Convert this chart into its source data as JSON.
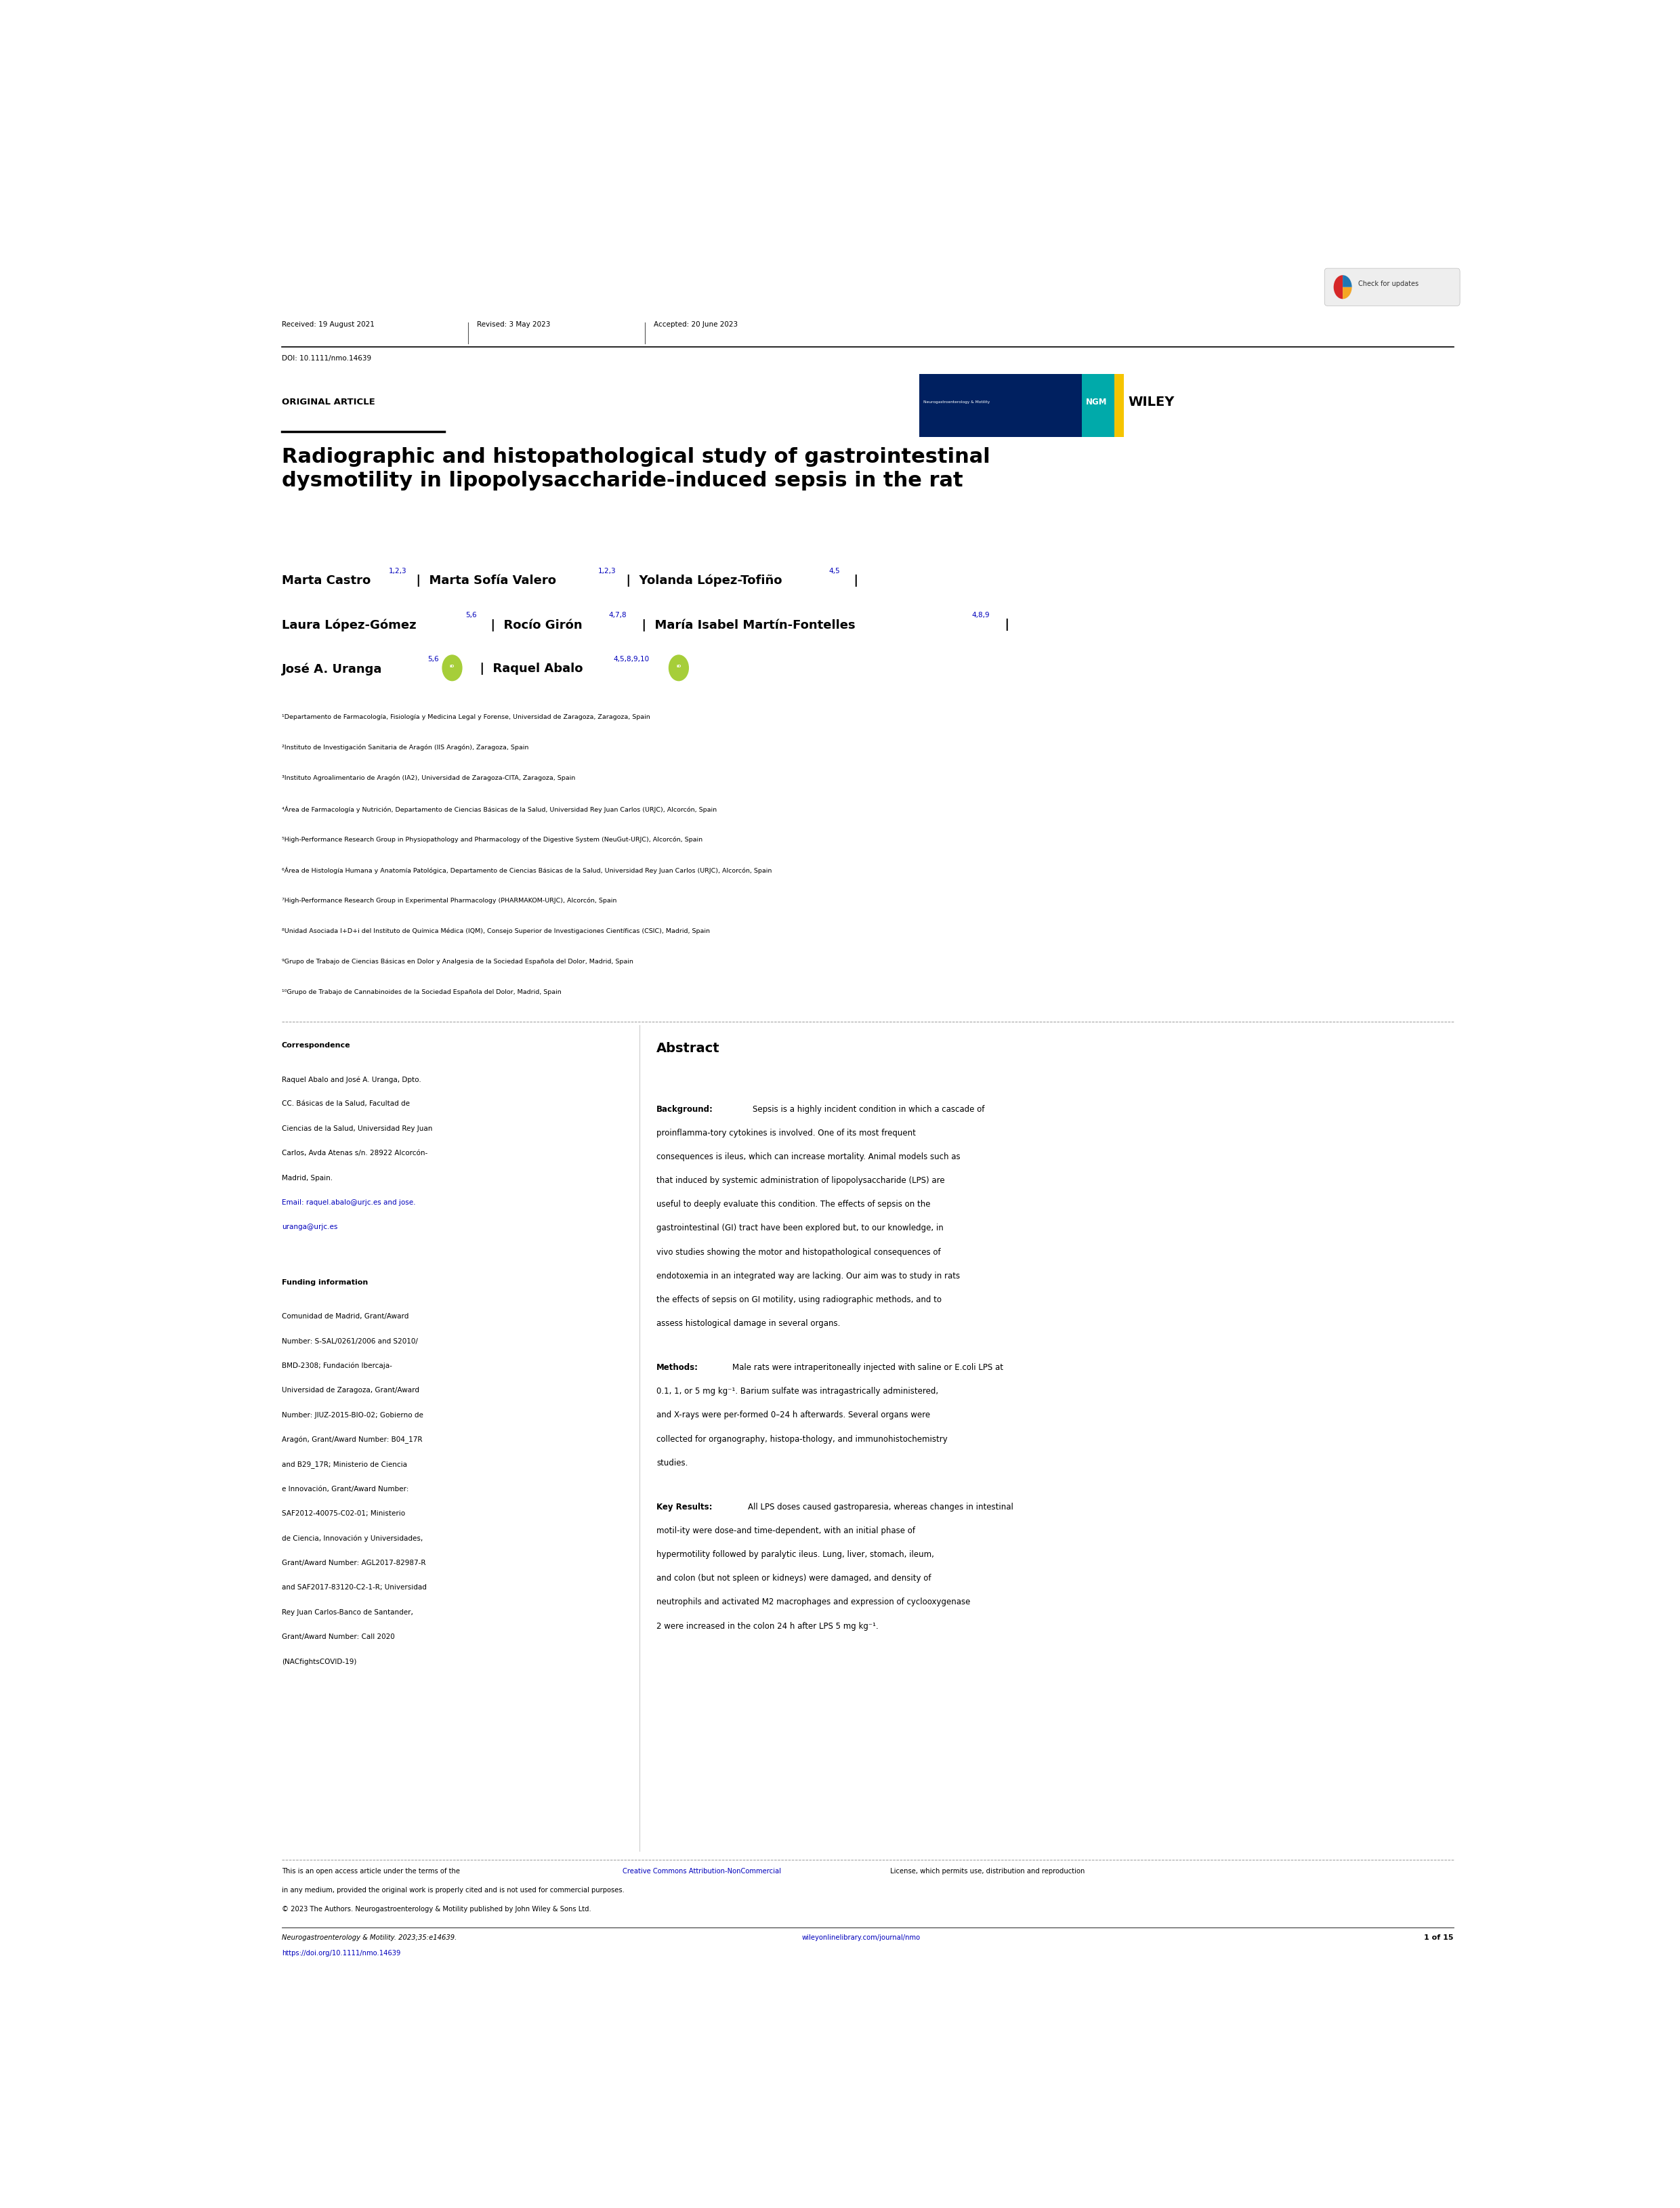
{
  "page_width": 24.8,
  "page_height": 32.59,
  "background_color": "#ffffff",
  "header": {
    "received": "Received: 19 August 2021",
    "revised": "Revised: 3 May 2023",
    "accepted": "Accepted: 20 June 2023",
    "doi": "DOI: 10.1111/nmo.14639"
  },
  "section_label": "ORIGINAL ARTICLE",
  "title": "Radiographic and histopathological study of gastrointestinal\ndysmotility in lipopolysaccharide-induced sepsis in the rat",
  "affiliations": [
    "¹Departamento de Farmacología, Fisiología y Medicina Legal y Forense, Universidad de Zaragoza, Zaragoza, Spain",
    "²Instituto de Investigación Sanitaria de Aragón (IIS Aragón), Zaragoza, Spain",
    "³Instituto Agroalimentario de Aragón (IA2), Universidad de Zaragoza-CITA, Zaragoza, Spain",
    "⁴Área de Farmacología y Nutrición, Departamento de Ciencias Básicas de la Salud, Universidad Rey Juan Carlos (URJC), Alcorcón, Spain",
    "⁵High-Performance Research Group in Physiopathology and Pharmacology of the Digestive System (NeuGut-URJC), Alcorcón, Spain",
    "⁶Área de Histología Humana y Anatomía Patológica, Departamento de Ciencias Básicas de la Salud, Universidad Rey Juan Carlos (URJC), Alcorcón, Spain",
    "⁷High-Performance Research Group in Experimental Pharmacology (PHARMAKOM-URJC), Alcorcón, Spain",
    "⁸Unidad Asociada I+D+i del Instituto de Química Médica (IQM), Consejo Superior de Investigaciones Científicas (CSIC), Madrid, Spain",
    "⁹Grupo de Trabajo de Ciencias Básicas en Dolor y Analgesia de la Sociedad Española del Dolor, Madrid, Spain",
    "¹⁰Grupo de Trabajo de Cannabinoides de la Sociedad Española del Dolor, Madrid, Spain"
  ],
  "correspondence_title": "Correspondence",
  "correspondence_lines": [
    "Raquel Abalo and José A. Uranga, Dpto.",
    "CC. Básicas de la Salud, Facultad de",
    "Ciencias de la Salud, Universidad Rey Juan",
    "Carlos, Avda Atenas s/n. 28922 Alcorcón-",
    "Madrid, Spain.",
    "Email: raquel.abalo@urjc.es and jose.",
    "uranga@urjc.es"
  ],
  "correspondence_link_indices": [
    5,
    6
  ],
  "funding_title": "Funding information",
  "funding_lines": [
    "Comunidad de Madrid, Grant/Award",
    "Number: S-SAL/0261/2006 and S2010/",
    "BMD-2308; Fundación Ibercaja-",
    "Universidad de Zaragoza, Grant/Award",
    "Number: JIUZ-2015-BIO-02; Gobierno de",
    "Aragón, Grant/Award Number: B04_17R",
    "and B29_17R; Ministerio de Ciencia",
    "e Innovación, Grant/Award Number:",
    "SAF2012-40075-C02-01; Ministerio",
    "de Ciencia, Innovación y Universidades,",
    "Grant/Award Number: AGL2017-82987-R",
    "and SAF2017-83120-C2-1-R; Universidad",
    "Rey Juan Carlos-Banco de Santander,",
    "Grant/Award Number: Call 2020",
    "(NACfightsCOVID-19)"
  ],
  "abstract_title": "Abstract",
  "abstract_background_title": "Background:",
  "abstract_background": "Sepsis is a highly incident condition in which a cascade of proinflamma-tory cytokines is involved. One of its most frequent consequences is ileus, which can increase mortality. Animal models such as that induced by systemic administration of lipopolysaccharide (LPS) are useful to deeply evaluate this condition. The effects of sepsis on the gastrointestinal (GI) tract have been explored but, to our knowledge, in vivo studies showing the motor and histopathological consequences of endotoxemia in an integrated way are lacking. Our aim was to study in rats the effects of sepsis on GI motility, using radiographic methods, and to assess histological damage in several organs.",
  "abstract_methods_title": "Methods:",
  "abstract_methods": "Male rats were intraperitoneally injected with saline or E.coli LPS at 0.1, 1, or 5 mg kg⁻¹. Barium sulfate was intragastrically administered, and X-rays were per-formed 0–24 h afterwards. Several organs were collected for organography, histopa-thology, and immunohistochemistry studies.",
  "abstract_keyresults_title": "Key Results:",
  "abstract_keyresults": "All LPS doses caused gastroparesia, whereas changes in intestinal motil-ity were dose-and time-dependent, with an initial phase of hypermotility followed by paralytic ileus. Lung, liver, stomach, ileum, and colon (but not spleen or kidneys) were damaged, and density of neutrophils and activated M2 macrophages and expression of cyclooxygenase 2 were increased in the colon 24 h after LPS 5 mg kg⁻¹.",
  "footer_line1": "This is an open access article under the terms of the ",
  "footer_link": "Creative Commons Attribution-NonCommercial",
  "footer_line1b": " License, which permits use, distribution and reproduction",
  "footer_line2": "in any medium, provided the original work is properly cited and is not used for commercial purposes.",
  "footer_line3": "© 2023 The Authors. Neurogastroenterology & Motility published by John Wiley & Sons Ltd.",
  "journal_name_italic": "Neurogastroenterology & Motility",
  "journal_year_vol": "2023;35:e14639.",
  "doi_url": "https://doi.org/10.1111/nmo.14639",
  "page_num": "1 of 15",
  "wileyonlinelibrary": "wileyonlinelibrary.com/journal/nmo"
}
